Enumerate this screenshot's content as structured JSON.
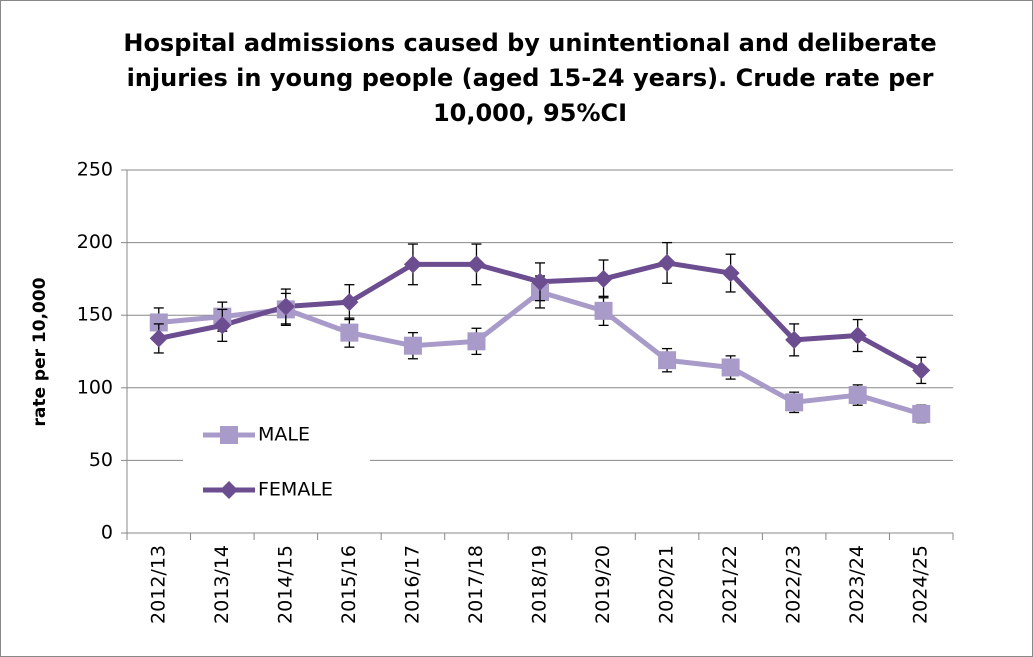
{
  "chart_data": {
    "type": "line",
    "title": "Hospital admissions caused by unintentional and deliberate injuries in young people (aged 15-24 years). Crude rate per 10,000, 95%CI",
    "y_label": "rate per 10,000",
    "categories": [
      "2012/13",
      "2013/14",
      "2014/15",
      "2015/16",
      "2016/17",
      "2017/18",
      "2018/19",
      "2019/20",
      "2020/21",
      "2021/22",
      "2022/23",
      "2023/24",
      "2024/25"
    ],
    "series": [
      {
        "name": "MALE",
        "color": "#a89bc9",
        "marker": "square",
        "values": [
          145,
          149,
          154,
          138,
          129,
          132,
          166,
          153,
          119,
          114,
          90,
          95,
          82
        ],
        "errors": [
          10,
          10,
          11,
          10,
          9,
          9,
          11,
          10,
          8,
          8,
          7,
          7,
          6
        ]
      },
      {
        "name": "FEMALE",
        "color": "#6b4d90",
        "marker": "diamond",
        "values": [
          134,
          143,
          156,
          159,
          185,
          185,
          173,
          175,
          186,
          179,
          133,
          136,
          112
        ],
        "errors": [
          10,
          11,
          12,
          12,
          14,
          14,
          13,
          13,
          14,
          13,
          11,
          11,
          9
        ]
      }
    ],
    "ylim": [
      0,
      250
    ],
    "yticks": [
      0,
      50,
      100,
      150,
      200,
      250
    ],
    "grid": true,
    "legend": "left"
  }
}
